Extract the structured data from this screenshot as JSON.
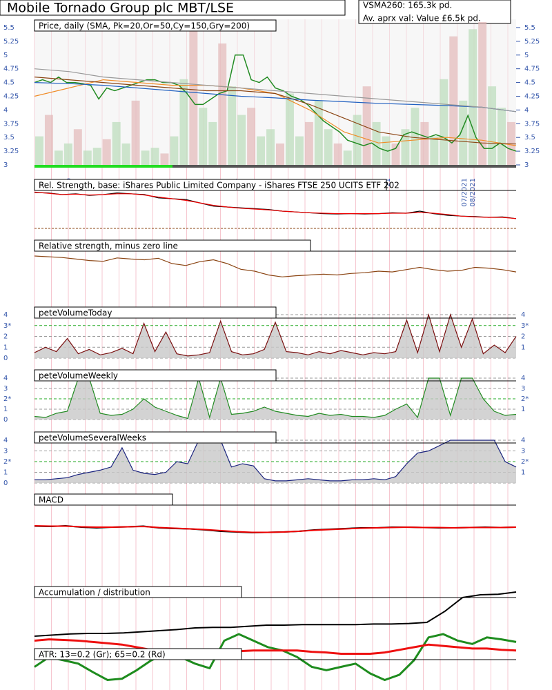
{
  "header": {
    "title": "Mobile Tornado Group plc MBT/LSE",
    "vsma": "VSMA260: 165.3k pd.",
    "value": "Av. aprx val: Value £6.5k pd."
  },
  "chart_data": [
    {
      "type": "price",
      "title": "Price, daily (SMA, Pk=20,Or=50,Cy=150,Gry=200)",
      "ylim": [
        3,
        5.6
      ],
      "yticks": [
        3,
        3.25,
        3.5,
        3.75,
        4,
        4.25,
        4.5,
        4.75,
        5,
        5.25,
        5.5
      ],
      "date_labels": [
        "0",
        "21",
        "21",
        "21",
        "07/2021",
        "08/2021"
      ],
      "volume": {
        "color": "#b9dcb9",
        "vlim": [
          0,
          100
        ],
        "values": [
          20,
          35,
          10,
          15,
          25,
          10,
          12,
          18,
          30,
          15,
          45,
          10,
          12,
          8,
          20,
          60,
          95,
          40,
          30,
          85,
          55,
          35,
          40,
          20,
          25,
          15,
          50,
          20,
          30,
          45,
          25,
          15,
          10,
          35,
          55,
          30,
          20,
          15,
          25,
          40,
          30,
          20,
          60,
          90,
          45,
          95,
          100,
          55,
          40,
          30
        ]
      },
      "series": [
        {
          "color": "#228b22",
          "values": [
            4.5,
            4.55,
            4.5,
            4.6,
            4.5,
            4.5,
            4.48,
            4.45,
            4.2,
            4.4,
            4.35,
            4.4,
            4.45,
            4.5,
            4.55,
            4.55,
            4.5,
            4.5,
            4.45,
            4.3,
            4.1,
            4.1,
            4.2,
            4.3,
            4.35,
            5,
            5,
            4.55,
            4.5,
            4.6,
            4.4,
            4.35,
            4.25,
            4.2,
            4.1,
            3.95,
            3.8,
            3.7,
            3.6,
            3.45,
            3.4,
            3.35,
            3.4,
            3.3,
            3.25,
            3.3,
            3.55,
            3.6,
            3.55,
            3.5,
            3.55,
            3.5,
            3.4,
            3.55,
            3.9,
            3.5,
            3.3,
            3.3,
            3.4,
            3.3,
            3.25
          ]
        },
        {
          "color": "#f08c28",
          "values": [
            4.25,
            4.4,
            4.55,
            4.5,
            4.45,
            4.45,
            4.4,
            4.3,
            4.0,
            3.6,
            3.4,
            3.45,
            3.5,
            3.45,
            3.35
          ]
        },
        {
          "color": "#8b4513",
          "values": [
            4.6,
            4.55,
            4.5,
            4.45,
            4.4,
            4.35,
            4.35,
            4.3,
            4.1,
            3.85,
            3.6,
            3.5,
            3.45,
            3.4,
            3.38
          ]
        },
        {
          "color": "#2060c0",
          "values": [
            4.5,
            4.48,
            4.45,
            4.4,
            4.35,
            4.3,
            4.25,
            4.22,
            4.18,
            4.15,
            4.12,
            4.1,
            4.08,
            4.05,
            3.97
          ]
        },
        {
          "color": "#999999",
          "values": [
            4.75,
            4.7,
            4.6,
            4.55,
            4.5,
            4.45,
            4.4,
            4.35,
            4.3,
            4.25,
            4.2,
            4.15,
            4.1,
            4.05,
            3.97
          ]
        }
      ]
    },
    {
      "type": "line",
      "title": "Rel. Strength, base: iShares Public Limited Company - iShares FTSE 250 UCITS ETF 202",
      "ylim": [
        0,
        100
      ],
      "series": [
        {
          "color": "#000000",
          "values": [
            85,
            84,
            80,
            82,
            78,
            80,
            84,
            82,
            80,
            72,
            70,
            68,
            60,
            52,
            50,
            48,
            46,
            44,
            40,
            38,
            36,
            34,
            33,
            34,
            33,
            34,
            36,
            35,
            40,
            34,
            30,
            28,
            27,
            25,
            26,
            22
          ]
        },
        {
          "color": "#ee0000",
          "values": [
            86,
            83,
            80,
            81,
            79,
            80,
            82,
            82,
            79,
            74,
            70,
            66,
            60,
            54,
            50,
            47,
            45,
            43,
            40,
            38,
            36,
            35,
            34,
            34,
            34,
            34,
            35,
            35,
            37,
            35,
            32,
            28,
            26,
            25,
            25,
            22
          ]
        }
      ]
    },
    {
      "type": "line",
      "title": "Relative strength, minus zero line",
      "ylim": [
        0,
        100
      ],
      "series": [
        {
          "color": "#8b4513",
          "values": [
            80,
            78,
            76,
            72,
            68,
            66,
            75,
            72,
            70,
            74,
            60,
            55,
            65,
            70,
            60,
            45,
            40,
            30,
            25,
            28,
            30,
            32,
            30,
            34,
            36,
            40,
            38,
            44,
            50,
            44,
            40,
            42,
            50,
            48,
            44,
            38
          ]
        }
      ]
    },
    {
      "type": "area",
      "title": "peteVolumeToday",
      "ylim": [
        0,
        4
      ],
      "grid_color": "#22aa22",
      "yticks": [
        0,
        1,
        2,
        {
          "value": 3,
          "label": "3*"
        },
        4
      ],
      "series": [
        {
          "color": "#7a1010",
          "values": [
            0.5,
            1.0,
            0.6,
            1.8,
            0.4,
            0.8,
            0.3,
            0.5,
            0.9,
            0.4,
            3.2,
            0.6,
            2.4,
            0.4,
            0.2,
            0.3,
            0.5,
            3.4,
            0.6,
            0.3,
            0.4,
            0.8,
            3.3,
            0.6,
            0.5,
            0.3,
            0.6,
            0.4,
            0.7,
            0.5,
            0.3,
            0.5,
            0.4,
            0.6,
            3.5,
            0.5,
            4.0,
            0.6,
            4.0,
            1.0,
            3.6,
            0.4,
            1.2,
            0.5,
            2.0
          ]
        }
      ]
    },
    {
      "type": "area",
      "title": "peteVolumeWeekly",
      "ylim": [
        0,
        4
      ],
      "grid_color": "#22aa22",
      "yticks": [
        0,
        1,
        {
          "value": 2,
          "label": "2*"
        },
        3,
        4
      ],
      "series": [
        {
          "color": "#228b22",
          "values": [
            0.3,
            0.2,
            0.6,
            0.8,
            4.0,
            4.0,
            0.6,
            0.4,
            0.5,
            1.0,
            2.0,
            1.2,
            0.8,
            0.4,
            0.1,
            4.0,
            0.2,
            4.0,
            0.5,
            0.6,
            0.8,
            1.2,
            0.8,
            0.6,
            0.4,
            0.3,
            0.6,
            0.4,
            0.5,
            0.3,
            0.3,
            0.2,
            0.4,
            1.0,
            1.5,
            0.2,
            4.0,
            4.0,
            0.4,
            4.0,
            4.0,
            2.0,
            0.8,
            0.4,
            0.5
          ]
        }
      ]
    },
    {
      "type": "area",
      "title": "peteVolumeSeveralWeeks",
      "ylim": [
        0,
        4
      ],
      "grid_color": "#22aa22",
      "yticks": [
        0,
        1,
        {
          "value": 2,
          "label": "2*"
        },
        3,
        4
      ],
      "series": [
        {
          "color": "#1a237e",
          "values": [
            0.3,
            0.3,
            0.4,
            0.5,
            0.8,
            1.0,
            1.2,
            1.5,
            3.3,
            1.2,
            0.9,
            0.8,
            1.0,
            2.0,
            1.8,
            4.0,
            4.0,
            4.0,
            1.5,
            1.8,
            1.6,
            0.4,
            0.2,
            0.2,
            0.3,
            0.4,
            0.3,
            0.2,
            0.2,
            0.3,
            0.3,
            0.4,
            0.3,
            0.6,
            1.8,
            2.8,
            3.0,
            3.5,
            4.0,
            4.0,
            4.0,
            4.0,
            4.0,
            2.0,
            1.5
          ]
        }
      ]
    },
    {
      "type": "line",
      "title": "MACD",
      "ylim": [
        0,
        100
      ],
      "series": [
        {
          "color": "#000000",
          "values": [
            55,
            54,
            56,
            52,
            50,
            52,
            53,
            55,
            50,
            48,
            47,
            44,
            40,
            38,
            36,
            37,
            38,
            40,
            44,
            46,
            48,
            50,
            50,
            52,
            52,
            51,
            50,
            50,
            51,
            52,
            51,
            52
          ]
        },
        {
          "color": "#ee0000",
          "values": [
            56,
            55,
            55,
            53,
            52,
            52,
            53,
            54,
            51,
            49,
            47,
            45,
            42,
            39,
            37,
            37,
            38,
            40,
            43,
            45,
            47,
            49,
            50,
            51,
            52,
            51,
            51,
            50,
            51,
            51,
            51,
            52
          ]
        }
      ]
    },
    {
      "type": "line",
      "title": "Accumulation / distribution",
      "ylim": [
        0,
        100
      ],
      "series": [
        {
          "color": "#000000",
          "values": [
            10,
            12,
            14,
            15,
            15,
            16,
            18,
            20,
            22,
            25,
            26,
            26,
            28,
            30,
            30,
            31,
            31,
            31,
            31,
            32,
            32,
            33,
            35,
            55,
            80,
            85,
            86,
            90
          ]
        }
      ]
    },
    {
      "type": "line",
      "title": "ATR: 13=0.2 (Gr); 65=0.2 (Rd)",
      "ylim": [
        0,
        100
      ],
      "series": [
        {
          "color": "#1e8c1e",
          "values": [
            30,
            45,
            40,
            35,
            22,
            10,
            12,
            25,
            40,
            50,
            45,
            35,
            28,
            70,
            80,
            70,
            60,
            55,
            45,
            30,
            25,
            30,
            35,
            20,
            10,
            18,
            40,
            75,
            80,
            70,
            65,
            75,
            72,
            68
          ]
        },
        {
          "color": "#ee1111",
          "values": [
            70,
            72,
            71,
            70,
            68,
            66,
            64,
            60,
            56,
            52,
            50,
            50,
            50,
            52,
            54,
            55,
            55,
            55,
            55,
            53,
            52,
            50,
            50,
            50,
            52,
            56,
            60,
            64,
            62,
            60,
            58,
            58,
            56,
            55
          ]
        }
      ]
    }
  ]
}
